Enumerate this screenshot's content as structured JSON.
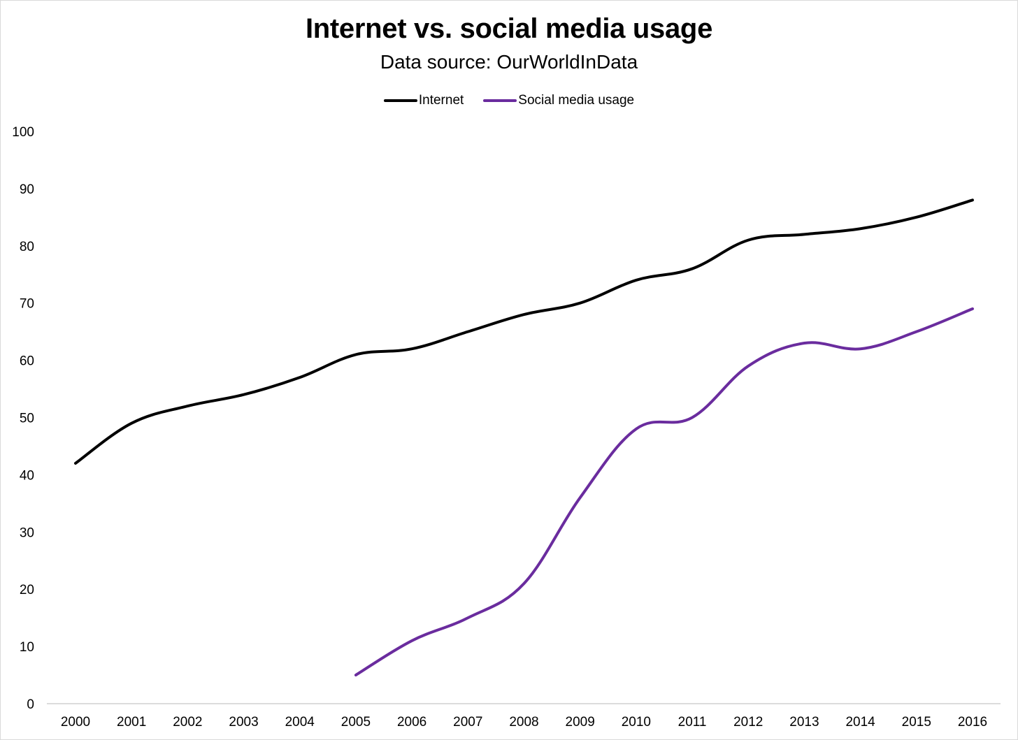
{
  "title": "Internet vs. social media usage",
  "subtitle": "Data source: OurWorldInData",
  "colors": {
    "internet": "#000000",
    "social": "#6a2c9e",
    "axis": "#d0d0d0"
  },
  "chart_data": {
    "type": "line",
    "title": "Internet vs. social media usage",
    "subtitle": "Data source: OurWorldInData",
    "xlabel": "",
    "ylabel": "",
    "x": [
      "2000",
      "2001",
      "2002",
      "2003",
      "2004",
      "2005",
      "2006",
      "2007",
      "2008",
      "2009",
      "2010",
      "2011",
      "2012",
      "2013",
      "2014",
      "2015",
      "2016"
    ],
    "ylim": [
      0,
      100
    ],
    "yticks": [
      "0",
      "10",
      "20",
      "30",
      "40",
      "50",
      "60",
      "70",
      "80",
      "90",
      "100"
    ],
    "grid": false,
    "legend": "top-center",
    "series": [
      {
        "name": "Internet",
        "color": "#000000",
        "values": [
          42,
          49,
          52,
          54,
          57,
          61,
          62,
          65,
          68,
          70,
          74,
          76,
          81,
          82,
          83,
          85,
          88
        ]
      },
      {
        "name": "Social media usage",
        "color": "#6a2c9e",
        "values": [
          null,
          null,
          null,
          null,
          null,
          5,
          11,
          15,
          21,
          36,
          48,
          50,
          59,
          63,
          62,
          65,
          69
        ]
      }
    ]
  }
}
